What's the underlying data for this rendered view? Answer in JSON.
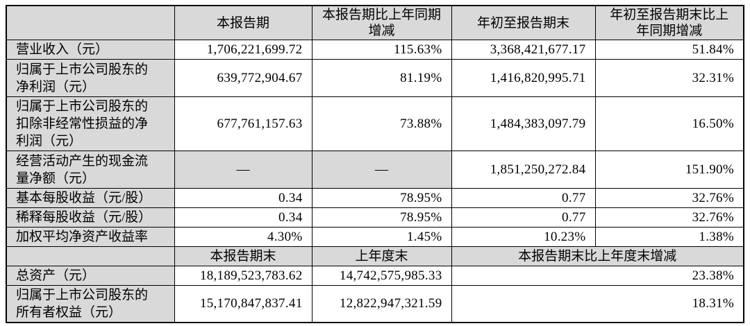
{
  "colors": {
    "header_bg": "#d9d9d9",
    "cell_bg": "#ffffff",
    "border": "#000000",
    "text": "#000000",
    "page_bg": "#ffffff"
  },
  "table": {
    "header": {
      "indicator": "",
      "current_period": "本报告期",
      "current_period_yoy": "本报告期比上年同期\n增减",
      "ytd": "年初至报告期末",
      "ytd_yoy": "年初至报告期末比上\n年同期增减"
    },
    "rows": [
      {
        "label": "营业收入（元）",
        "current": "1,706,221,699.72",
        "yoy": "115.63%",
        "ytd": "3,368,421,677.17",
        "ytd_yoy": "51.84%"
      },
      {
        "label": "归属于上市公司股东的\n净利润（元）",
        "current": "639,772,904.67",
        "yoy": "81.19%",
        "ytd": "1,416,820,995.71",
        "ytd_yoy": "32.31%"
      },
      {
        "label": "归属于上市公司股东的\n扣除非经常性损益的净\n利润（元）",
        "current": "677,761,157.63",
        "yoy": "73.88%",
        "ytd": "1,484,383,097.79",
        "ytd_yoy": "16.50%"
      },
      {
        "label": "经营活动产生的现金流\n量净额（元）",
        "current": "—",
        "yoy": "—",
        "ytd": "1,851,250,272.84",
        "ytd_yoy": "151.90%"
      },
      {
        "label": "基本每股收益（元/股）",
        "current": "0.34",
        "yoy": "78.95%",
        "ytd": "0.77",
        "ytd_yoy": "32.76%"
      },
      {
        "label": "稀释每股收益（元/股）",
        "current": "0.34",
        "yoy": "78.95%",
        "ytd": "0.77",
        "ytd_yoy": "32.76%"
      },
      {
        "label": "加权平均净资产收益率",
        "current": "4.30%",
        "yoy": "1.45%",
        "ytd": "10.23%",
        "ytd_yoy": "1.38%"
      }
    ],
    "section2": {
      "header": {
        "indicator": "",
        "period_end": "本报告期末",
        "prior_year_end": "上年度末",
        "change": "本报告期末比上年度末增减"
      },
      "rows": [
        {
          "label": "总资产（元）",
          "period_end": "18,189,523,783.62",
          "prior_year_end": "14,742,575,985.33",
          "change": "23.38%"
        },
        {
          "label": "归属于上市公司股东的\n所有者权益（元）",
          "period_end": "15,170,847,837.41",
          "prior_year_end": "12,822,947,321.59",
          "change": "18.31%"
        }
      ]
    }
  }
}
